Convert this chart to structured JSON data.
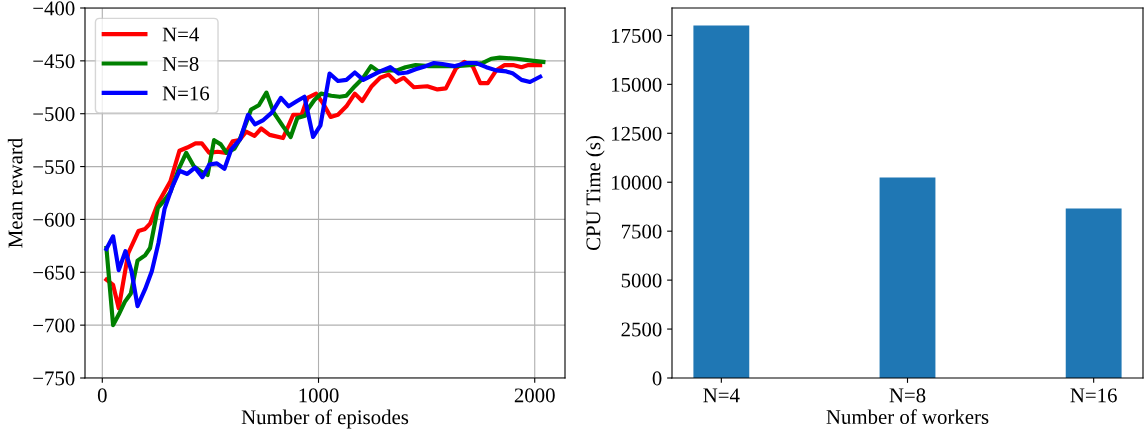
{
  "chart_data": [
    {
      "type": "line",
      "xlabel": "Number of episodes",
      "ylabel": "Mean reward",
      "xlim": [
        -80,
        2140
      ],
      "ylim": [
        -750,
        -400
      ],
      "xticks": [
        0,
        1000,
        2000
      ],
      "yticks": [
        {
          "value": -750,
          "label": "−750"
        },
        {
          "value": -700,
          "label": "−700"
        },
        {
          "value": -650,
          "label": "−650"
        },
        {
          "value": -600,
          "label": "−600"
        },
        {
          "value": -550,
          "label": "−550"
        },
        {
          "value": -500,
          "label": "−500"
        },
        {
          "value": -450,
          "label": "−450"
        },
        {
          "value": -400,
          "label": "−400"
        }
      ],
      "grid": true,
      "legend": "top left",
      "line_style": "solid",
      "marker": "none",
      "series": [
        {
          "name": "N=4",
          "color": "#ff0000",
          "x": [
            19,
            50,
            76,
            120,
            167,
            198,
            221,
            257,
            315,
            357,
            393,
            431,
            460,
            494,
            533,
            572,
            603,
            634,
            665,
            704,
            735,
            774,
            836,
            883,
            922,
            949,
            989,
            1020,
            1056,
            1090,
            1129,
            1168,
            1202,
            1246,
            1285,
            1324,
            1358,
            1394,
            1441,
            1503,
            1550,
            1589,
            1636,
            1674,
            1713,
            1748,
            1783,
            1822,
            1861,
            1900,
            1939,
            1970,
            2025
          ],
          "values": [
            -657,
            -662,
            -684,
            -632,
            -611,
            -609,
            -604,
            -585,
            -564,
            -535,
            -532,
            -528,
            -528,
            -537,
            -536,
            -537,
            -526,
            -525,
            -517,
            -521,
            -514,
            -520,
            -523,
            -501,
            -501,
            -485,
            -481,
            -490,
            -503,
            -501,
            -493,
            -481,
            -488,
            -474,
            -466,
            -463,
            -470,
            -466,
            -475,
            -474,
            -477,
            -476,
            -457,
            -451,
            -455,
            -471,
            -471,
            -459,
            -454,
            -454,
            -456,
            -454,
            -454
          ]
        },
        {
          "name": "N=8",
          "color": "#008000",
          "x": [
            19,
            50,
            76,
            104,
            132,
            163,
            198,
            221,
            257,
            283,
            315,
            354,
            388,
            424,
            460,
            487,
            517,
            548,
            575,
            611,
            634,
            665,
            688,
            724,
            759,
            793,
            836,
            871,
            902,
            938,
            950,
            981,
            1012,
            1059,
            1098,
            1129,
            1168,
            1207,
            1243,
            1277,
            1324,
            1363,
            1402,
            1449,
            1511,
            1573,
            1636,
            1698,
            1760,
            1799,
            1838,
            1916,
            1994,
            2040
          ],
          "values": [
            -627,
            -700,
            -690,
            -678,
            -670,
            -639,
            -634,
            -627,
            -589,
            -583,
            -574,
            -552,
            -537,
            -550,
            -555,
            -558,
            -525,
            -529,
            -537,
            -533,
            -525,
            -509,
            -496,
            -492,
            -480,
            -499,
            -512,
            -522,
            -504,
            -502,
            -496,
            -487,
            -481,
            -483,
            -484,
            -483,
            -474,
            -466,
            -455,
            -460,
            -459,
            -459,
            -456,
            -454,
            -455,
            -455,
            -455,
            -454,
            -452,
            -448,
            -447,
            -448,
            -450,
            -451
          ]
        },
        {
          "name": "N=16",
          "color": "#0000ff",
          "x": [
            19,
            50,
            76,
            107,
            135,
            163,
            198,
            229,
            260,
            288,
            322,
            357,
            393,
            429,
            463,
            495,
            530,
            565,
            596,
            638,
            674,
            706,
            745,
            784,
            826,
            862,
            901,
            935,
            975,
            1009,
            1051,
            1090,
            1129,
            1168,
            1207,
            1246,
            1285,
            1332,
            1371,
            1410,
            1449,
            1495,
            1534,
            1573,
            1628,
            1682,
            1729,
            1776,
            1822,
            1869,
            1900,
            1939,
            1978,
            2025
          ],
          "values": [
            -628,
            -616,
            -648,
            -630,
            -649,
            -682,
            -666,
            -649,
            -622,
            -590,
            -570,
            -554,
            -557,
            -551,
            -560,
            -548,
            -547,
            -552,
            -534,
            -524,
            -501,
            -510,
            -506,
            -499,
            -485,
            -493,
            -488,
            -484,
            -522,
            -511,
            -462,
            -469,
            -468,
            -461,
            -468,
            -464,
            -460,
            -456,
            -462,
            -461,
            -458,
            -455,
            -452,
            -453,
            -455,
            -452,
            -452,
            -456,
            -459,
            -460,
            -462,
            -468,
            -470,
            -465
          ]
        }
      ]
    },
    {
      "type": "bar",
      "xlabel": "Number of workers",
      "ylabel": "CPU Time (s)",
      "categories": [
        "N=4",
        "N=8",
        "N=16"
      ],
      "values": [
        18000,
        10240,
        8660
      ],
      "color": "#1f77b4",
      "ylim": [
        0,
        18900
      ],
      "yticks": [
        0,
        2500,
        5000,
        7500,
        10000,
        12500,
        15000,
        17500
      ],
      "grid": false
    }
  ]
}
